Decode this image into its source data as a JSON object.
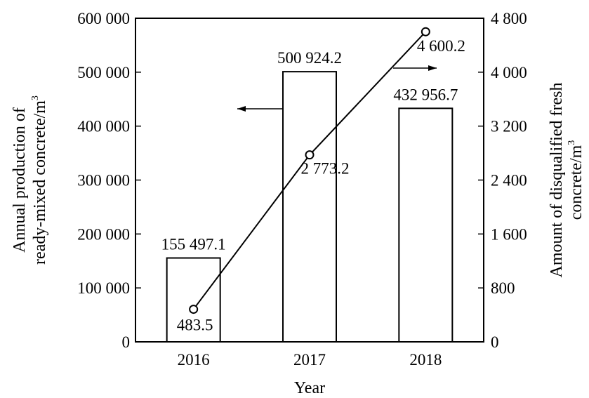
{
  "chart_data": {
    "type": "bar+line",
    "categories": [
      "2016",
      "2017",
      "2018"
    ],
    "xlabel": "Year",
    "ylabel_left": [
      "Annual production of",
      "ready-mixed concrete/m",
      "3"
    ],
    "ylabel_right": [
      "Amount of disqualified fresh",
      "concrete/m",
      "3"
    ],
    "ylim_left": [
      0,
      600000
    ],
    "yticks_left": [
      0,
      100000,
      200000,
      300000,
      400000,
      500000,
      600000
    ],
    "ytick_labels_left": [
      "0",
      "100 000",
      "200 000",
      "300 000",
      "400 000",
      "500 000",
      "600 000"
    ],
    "ylim_right": [
      0,
      4800
    ],
    "yticks_right": [
      0,
      800,
      1600,
      2400,
      3200,
      4000,
      4800
    ],
    "ytick_labels_right": [
      "0",
      "800",
      "1 600",
      "2 400",
      "3 200",
      "4 000",
      "4 800"
    ],
    "series": [
      {
        "kind": "bar",
        "axis": "left",
        "values": [
          155497.1,
          500924.2,
          432956.7
        ],
        "labels": [
          "155 497.1",
          "500 924.2",
          "432 956.7"
        ]
      },
      {
        "kind": "line",
        "axis": "right",
        "values": [
          483.5,
          2773.2,
          4600.2
        ],
        "labels": [
          "483.5",
          "2 773.2",
          "4 600.2"
        ]
      }
    ],
    "grid": false,
    "legend": "none",
    "annotations": [
      "arrow-left-pointing-to-left-axis",
      "arrow-right-pointing-to-right-axis"
    ]
  }
}
